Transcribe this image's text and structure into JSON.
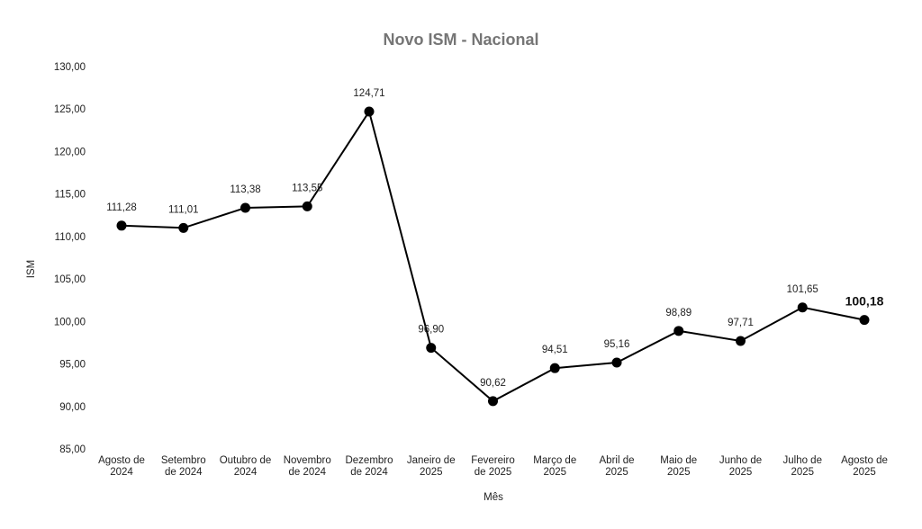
{
  "chart_data": {
    "type": "line",
    "title": "Novo ISM - Nacional",
    "xlabel": "Mês",
    "ylabel": "ISM",
    "categories": [
      [
        "Agosto de",
        "2024"
      ],
      [
        "Setembro",
        "de 2024"
      ],
      [
        "Outubro de",
        "2024"
      ],
      [
        "Novembro",
        "de 2024"
      ],
      [
        "Dezembro",
        "de 2024"
      ],
      [
        "Janeiro de",
        "2025"
      ],
      [
        "Fevereiro",
        "de 2025"
      ],
      [
        "Março de",
        "2025"
      ],
      [
        "Abril de",
        "2025"
      ],
      [
        "Maio de",
        "2025"
      ],
      [
        "Junho de",
        "2025"
      ],
      [
        "Julho de",
        "2025"
      ],
      [
        "Agosto de",
        "2025"
      ]
    ],
    "values": [
      111.28,
      111.01,
      113.38,
      113.55,
      124.71,
      96.9,
      90.62,
      94.51,
      95.16,
      98.89,
      97.71,
      101.65,
      100.18
    ],
    "data_labels": [
      "111,28",
      "111,01",
      "113,38",
      "113,55",
      "124,71",
      "96,90",
      "90,62",
      "94,51",
      "95,16",
      "98,89",
      "97,71",
      "101,65",
      "100,18"
    ],
    "y_ticks": [
      85,
      90,
      95,
      100,
      105,
      110,
      115,
      120,
      125,
      130
    ],
    "y_tick_labels": [
      "85,00",
      "90,00",
      "95,00",
      "100,00",
      "105,00",
      "110,00",
      "115,00",
      "120,00",
      "125,00",
      "130,00"
    ],
    "ylim": [
      85,
      130
    ],
    "grid": false,
    "legend": "none",
    "line_color": "#000000",
    "marker_color": "#000000",
    "title_color": "#757575",
    "highlight_last_label": true
  }
}
